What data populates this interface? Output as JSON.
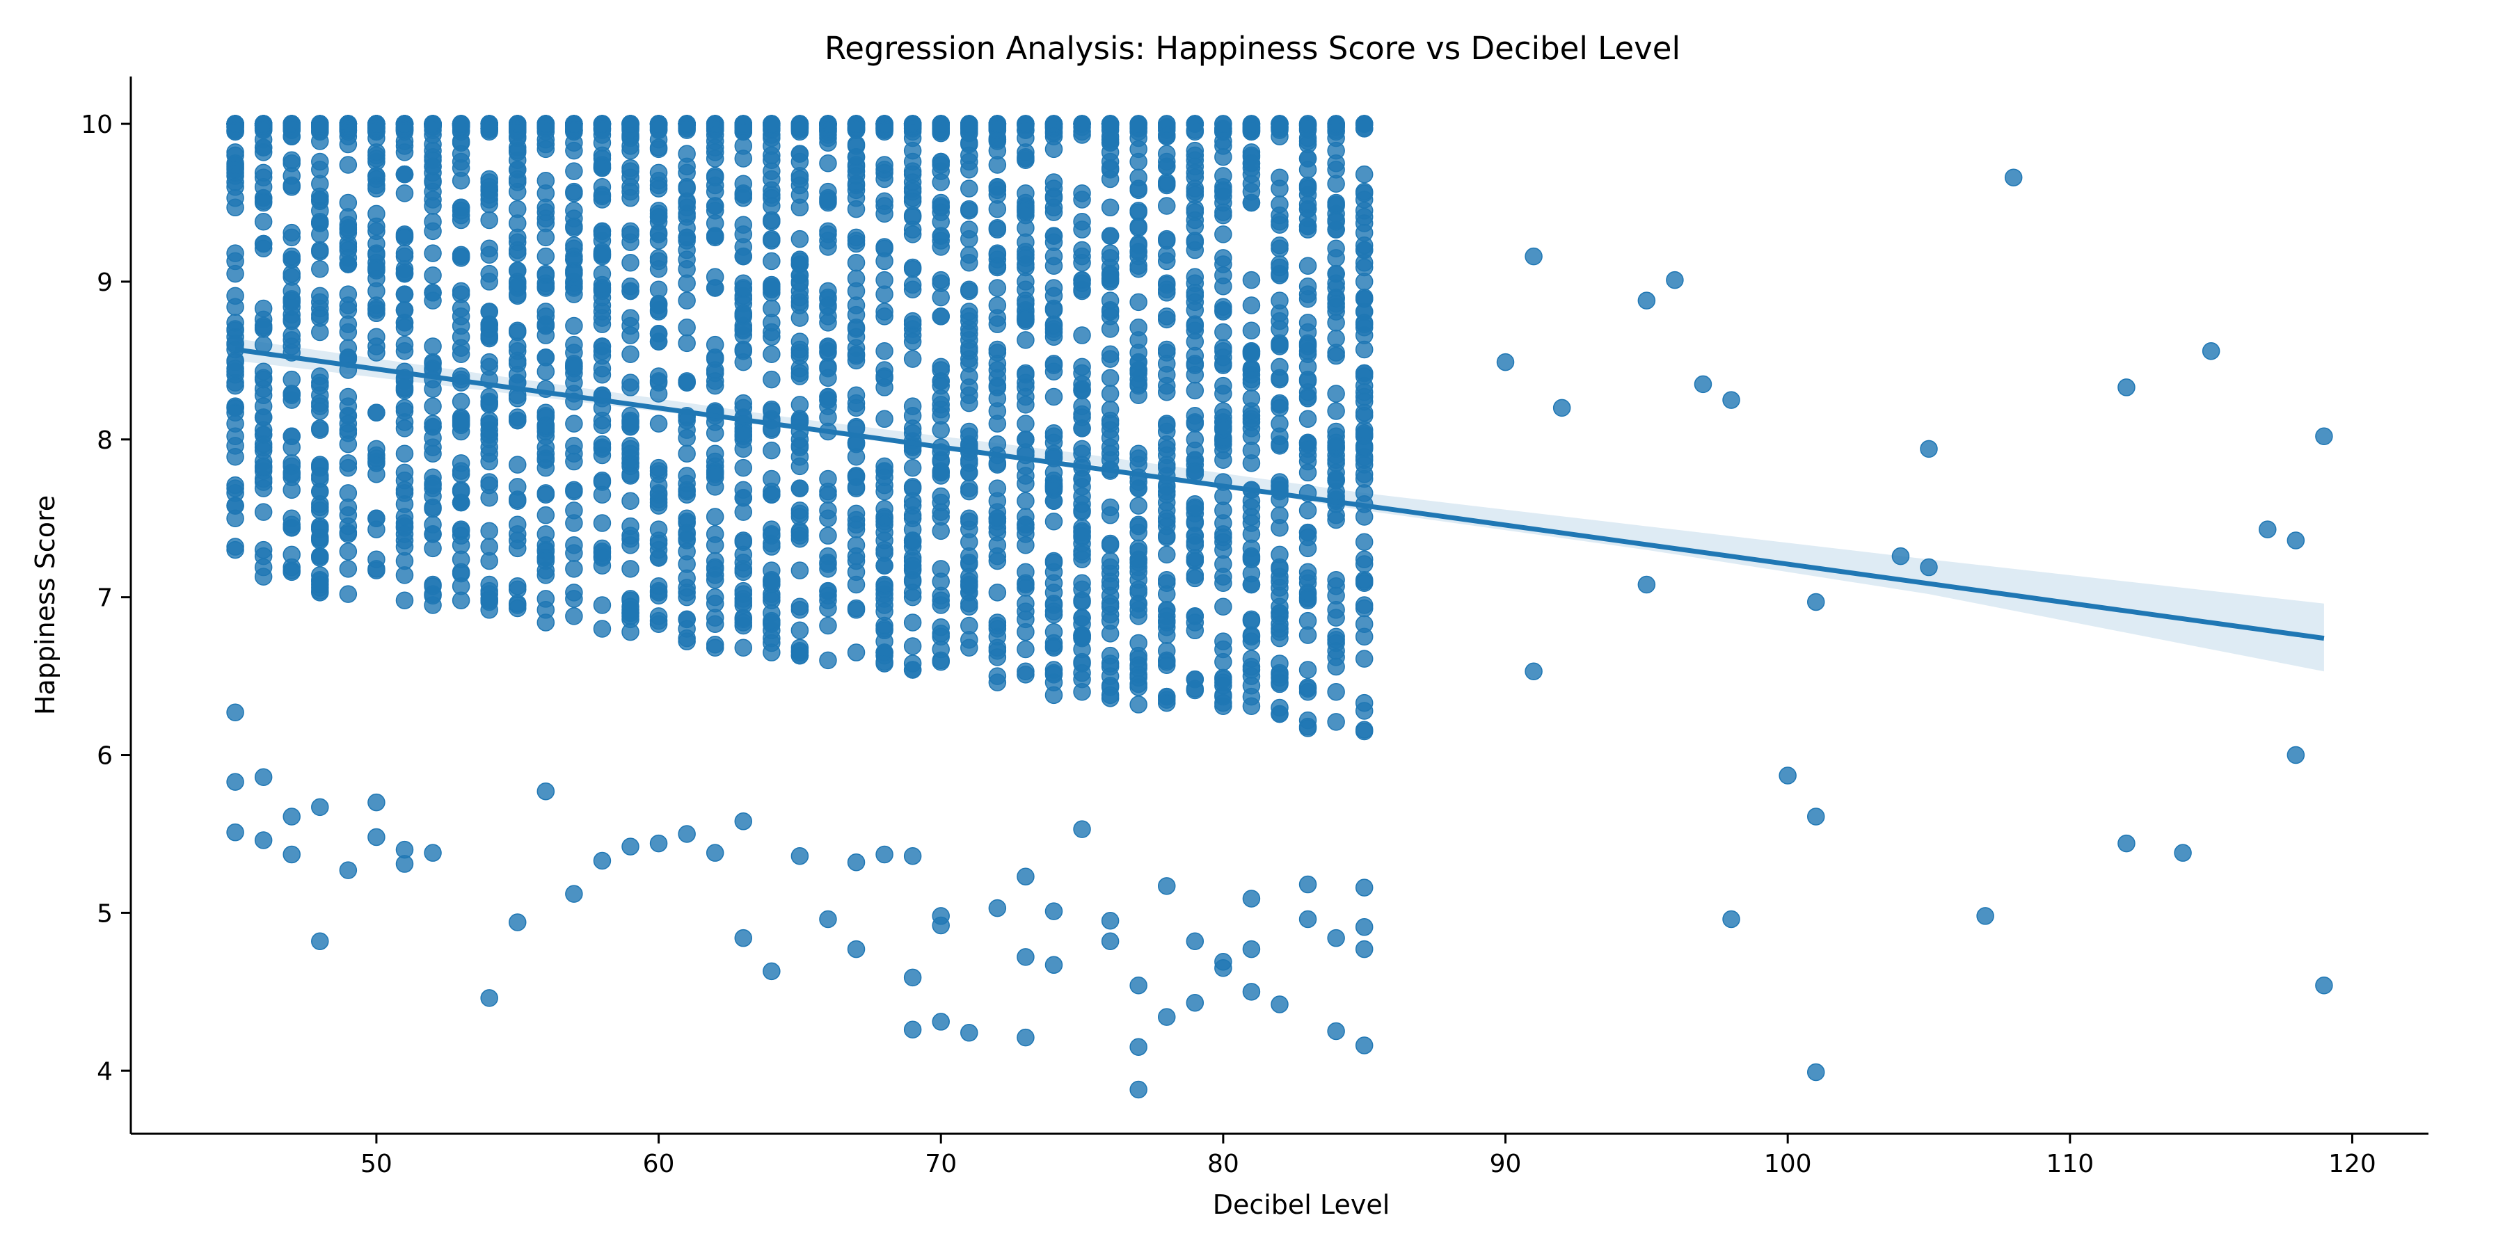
{
  "chart_data": {
    "type": "scatter",
    "title": "Regression Analysis: Happiness Score vs Decibel Level",
    "xlabel": "Decibel Level",
    "ylabel": "Happiness Score",
    "xlim": [
      41.3,
      122.7
    ],
    "ylim": [
      3.6,
      10.3
    ],
    "xticks": [
      50,
      60,
      70,
      80,
      90,
      100,
      110,
      120
    ],
    "yticks": [
      4,
      5,
      6,
      7,
      8,
      9,
      10
    ],
    "grid": false,
    "colors": {
      "points": "#1f77b4",
      "line": "#1f77b4",
      "band": "#1f77b4"
    },
    "dense_region": {
      "x_min": 45,
      "x_max": 85,
      "y_min": 3.88,
      "y_max": 10.0,
      "samples_per_x": 70,
      "note_x_integer": true
    },
    "scatter_points": [
      [
        45,
        5.51
      ],
      [
        45,
        5.83
      ],
      [
        45,
        6.27
      ],
      [
        46,
        5.46
      ],
      [
        46,
        5.86
      ],
      [
        47,
        5.37
      ],
      [
        47,
        5.61
      ],
      [
        48,
        4.82
      ],
      [
        48,
        5.67
      ],
      [
        49,
        5.27
      ],
      [
        50,
        5.48
      ],
      [
        50,
        5.7
      ],
      [
        51,
        5.31
      ],
      [
        51,
        5.4
      ],
      [
        52,
        5.38
      ],
      [
        54,
        4.46
      ],
      [
        55,
        4.94
      ],
      [
        56,
        5.77
      ],
      [
        57,
        5.12
      ],
      [
        58,
        5.33
      ],
      [
        59,
        5.42
      ],
      [
        60,
        5.44
      ],
      [
        61,
        5.5
      ],
      [
        62,
        5.38
      ],
      [
        63,
        4.84
      ],
      [
        63,
        5.58
      ],
      [
        64,
        4.63
      ],
      [
        65,
        5.36
      ],
      [
        66,
        4.96
      ],
      [
        67,
        4.77
      ],
      [
        67,
        5.32
      ],
      [
        68,
        5.37
      ],
      [
        69,
        4.26
      ],
      [
        69,
        4.59
      ],
      [
        69,
        5.36
      ],
      [
        70,
        4.31
      ],
      [
        70,
        4.92
      ],
      [
        70,
        4.98
      ],
      [
        71,
        4.24
      ],
      [
        72,
        5.03
      ],
      [
        73,
        4.21
      ],
      [
        73,
        4.72
      ],
      [
        73,
        5.23
      ],
      [
        74,
        4.67
      ],
      [
        74,
        5.01
      ],
      [
        75,
        5.53
      ],
      [
        76,
        4.82
      ],
      [
        76,
        4.95
      ],
      [
        77,
        3.88
      ],
      [
        77,
        4.15
      ],
      [
        77,
        4.54
      ],
      [
        78,
        4.34
      ],
      [
        78,
        5.17
      ],
      [
        79,
        4.43
      ],
      [
        79,
        4.82
      ],
      [
        80,
        4.65
      ],
      [
        80,
        4.69
      ],
      [
        81,
        4.5
      ],
      [
        81,
        4.77
      ],
      [
        81,
        5.09
      ],
      [
        82,
        4.42
      ],
      [
        83,
        4.96
      ],
      [
        83,
        5.18
      ],
      [
        84,
        4.25
      ],
      [
        84,
        4.84
      ],
      [
        85,
        4.16
      ],
      [
        85,
        4.77
      ],
      [
        85,
        4.91
      ],
      [
        85,
        5.16
      ],
      [
        90,
        8.49
      ],
      [
        91,
        9.16
      ],
      [
        91,
        6.53
      ],
      [
        92,
        8.2
      ],
      [
        95,
        8.88
      ],
      [
        95,
        7.08
      ],
      [
        96,
        9.01
      ],
      [
        97,
        8.35
      ],
      [
        98,
        8.25
      ],
      [
        98,
        4.96
      ],
      [
        100,
        5.87
      ],
      [
        101,
        6.97
      ],
      [
        101,
        5.61
      ],
      [
        101,
        3.99
      ],
      [
        104,
        7.26
      ],
      [
        105,
        7.94
      ],
      [
        105,
        7.19
      ],
      [
        107,
        4.98
      ],
      [
        108,
        9.66
      ],
      [
        112,
        8.33
      ],
      [
        112,
        5.44
      ],
      [
        114,
        5.38
      ],
      [
        115,
        8.56
      ],
      [
        117,
        7.43
      ],
      [
        118,
        7.36
      ],
      [
        118,
        6.0
      ],
      [
        119,
        8.02
      ],
      [
        119,
        4.54
      ]
    ],
    "regression": {
      "x_start": 45,
      "x_end": 119,
      "y_start": 8.57,
      "y_end": 6.74
    },
    "confidence_band": [
      {
        "x": 45,
        "lo": 8.5,
        "hi": 8.64
      },
      {
        "x": 65,
        "lo": 8.07,
        "hi": 8.13
      },
      {
        "x": 75,
        "lo": 7.85,
        "hi": 7.91
      },
      {
        "x": 85,
        "lo": 7.55,
        "hi": 7.66
      },
      {
        "x": 95,
        "lo": 7.3,
        "hi": 7.45
      },
      {
        "x": 105,
        "lo": 7.02,
        "hi": 7.24
      },
      {
        "x": 119,
        "lo": 6.53,
        "hi": 6.96
      }
    ]
  }
}
